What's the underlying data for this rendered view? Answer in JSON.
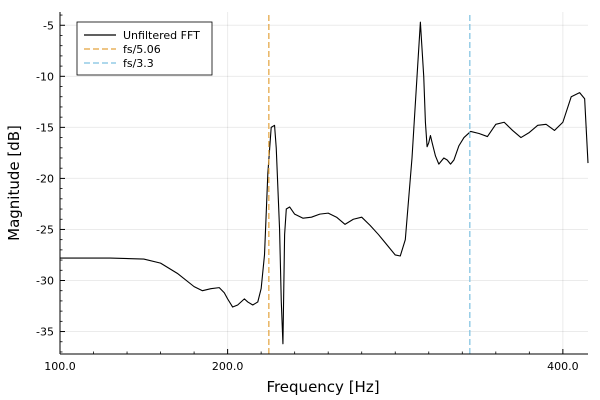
{
  "chart_data": {
    "type": "line",
    "title": "",
    "xlabel": "Frequency [Hz]",
    "ylabel": "Magnitude [dB]",
    "xlim": [
      100,
      415
    ],
    "ylim": [
      -37.2,
      -3.7
    ],
    "xticks": [
      100,
      200,
      400
    ],
    "xtick_labels": [
      "100.0",
      "200.0",
      "400.0"
    ],
    "yticks": [
      -35,
      -30,
      -25,
      -20,
      -15,
      -10,
      -5
    ],
    "ytick_labels": [
      "-35",
      "-30",
      "-25",
      "-20",
      "-15",
      "-10",
      "-5"
    ],
    "grid": true,
    "legend_position": "top-left",
    "series": [
      {
        "name": "Unfiltered FFT",
        "color": "#000000",
        "style": "solid",
        "x": [
          100,
          130,
          150,
          160,
          170,
          180,
          185,
          190,
          195,
          198,
          200,
          203,
          206,
          210,
          212,
          215,
          218,
          220,
          222,
          224,
          226,
          228,
          229,
          231,
          232,
          233,
          234,
          235,
          237,
          240,
          245,
          250,
          255,
          260,
          265,
          270,
          275,
          280,
          285,
          290,
          295,
          300,
          303,
          306,
          310,
          313,
          315,
          317,
          318,
          319,
          320,
          321,
          322,
          324,
          326,
          328,
          329,
          331,
          333,
          335,
          338,
          341,
          345,
          350,
          355,
          360,
          365,
          370,
          375,
          380,
          385,
          390,
          395,
          400,
          405,
          410,
          413,
          415
        ],
        "y": [
          -27.8,
          -27.8,
          -27.9,
          -28.3,
          -29.3,
          -30.6,
          -31.0,
          -30.8,
          -30.7,
          -31.2,
          -31.8,
          -32.6,
          -32.4,
          -31.8,
          -32.1,
          -32.4,
          -32.1,
          -30.8,
          -27.5,
          -19.5,
          -15.0,
          -14.8,
          -17.0,
          -25.0,
          -32.0,
          -36.2,
          -25.5,
          -23.0,
          -22.8,
          -23.5,
          -23.9,
          -23.8,
          -23.5,
          -23.4,
          -23.8,
          -24.5,
          -24.0,
          -23.8,
          -24.6,
          -25.5,
          -26.5,
          -27.5,
          -27.6,
          -26.0,
          -18.0,
          -10.0,
          -4.7,
          -10.0,
          -14.5,
          -16.9,
          -16.5,
          -15.8,
          -16.5,
          -17.8,
          -18.6,
          -18.2,
          -18.0,
          -18.2,
          -18.6,
          -18.2,
          -16.8,
          -16.0,
          -15.4,
          -15.6,
          -15.9,
          -14.7,
          -14.5,
          -15.3,
          -16.0,
          -15.5,
          -14.8,
          -14.7,
          -15.3,
          -14.5,
          -12.0,
          -11.6,
          -12.2,
          -18.5
        ]
      },
      {
        "name": "fs/5.06",
        "color": "#e3a23c",
        "style": "dashed",
        "x": [
          224.6,
          224.6
        ],
        "y": [
          -37.2,
          -3.7
        ]
      },
      {
        "name": "fs/3.3",
        "color": "#7dc0e0",
        "style": "dashed",
        "x": [
          344.5,
          344.5
        ],
        "y": [
          -37.2,
          -3.7
        ]
      }
    ]
  }
}
